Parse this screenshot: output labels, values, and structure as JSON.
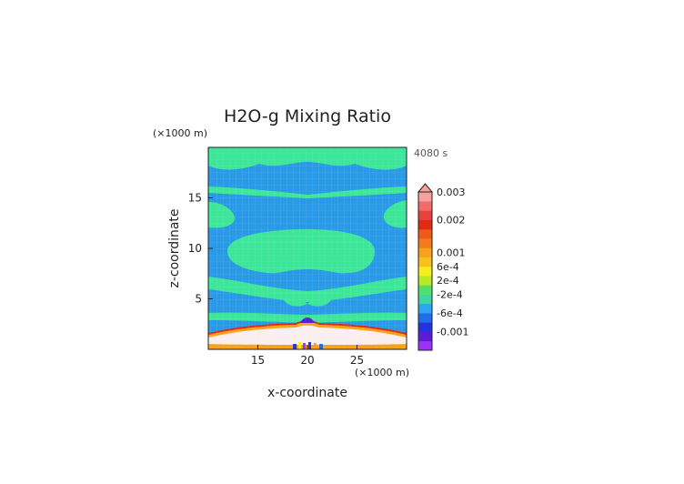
{
  "chart_data": {
    "type": "heatmap",
    "title": "H2O-g Mixing Ratio",
    "timestamp": "4080 s",
    "xlabel": "x-coordinate",
    "ylabel": "z-coordinate",
    "x_unit": "(×1000 m)",
    "y_unit": "(×1000 m)",
    "xlim": [
      10,
      30
    ],
    "ylim": [
      0,
      20
    ],
    "x_ticks": [
      {
        "value": 15,
        "label": "15"
      },
      {
        "value": 20,
        "label": "20"
      },
      {
        "value": 25,
        "label": "25"
      }
    ],
    "y_ticks": [
      {
        "value": 5,
        "label": "5"
      },
      {
        "value": 10,
        "label": "10"
      },
      {
        "value": 15,
        "label": "15"
      }
    ],
    "colorbar": {
      "extend": "max",
      "levels": [
        {
          "color": "#9b30ff"
        },
        {
          "color": "#5a1cd6"
        },
        {
          "color": "#2433e0"
        },
        {
          "color": "#1e6fe6"
        },
        {
          "color": "#2aa7f0"
        },
        {
          "color": "#3fd5a6"
        },
        {
          "color": "#52e06a"
        },
        {
          "color": "#b7ea22"
        },
        {
          "color": "#f3ee1c"
        },
        {
          "color": "#f6c21a"
        },
        {
          "color": "#f7a11c"
        },
        {
          "color": "#f47a1e"
        },
        {
          "color": "#ee5a1a"
        },
        {
          "color": "#e12a14"
        },
        {
          "color": "#e8403a"
        },
        {
          "color": "#f26a6a"
        },
        {
          "color": "#f7a0a0"
        }
      ],
      "labels": [
        {
          "text": "0.003",
          "at": 17
        },
        {
          "text": "0.002",
          "at": 14
        },
        {
          "text": "0.001",
          "at": 10.5
        },
        {
          "text": "6e-4",
          "at": 9
        },
        {
          "text": "2e-4",
          "at": 7.5
        },
        {
          "text": "-2e-4",
          "at": 6
        },
        {
          "text": "-6e-4",
          "at": 4
        },
        {
          "text": "-0.001",
          "at": 2
        }
      ]
    }
  },
  "colors": {
    "background_field": "#2a9ae6",
    "moist_band": "#3ee69a",
    "surface_layer": "#fbeeee",
    "surface_edge": "#f7a11c",
    "surface_rim": "#e12a14"
  }
}
